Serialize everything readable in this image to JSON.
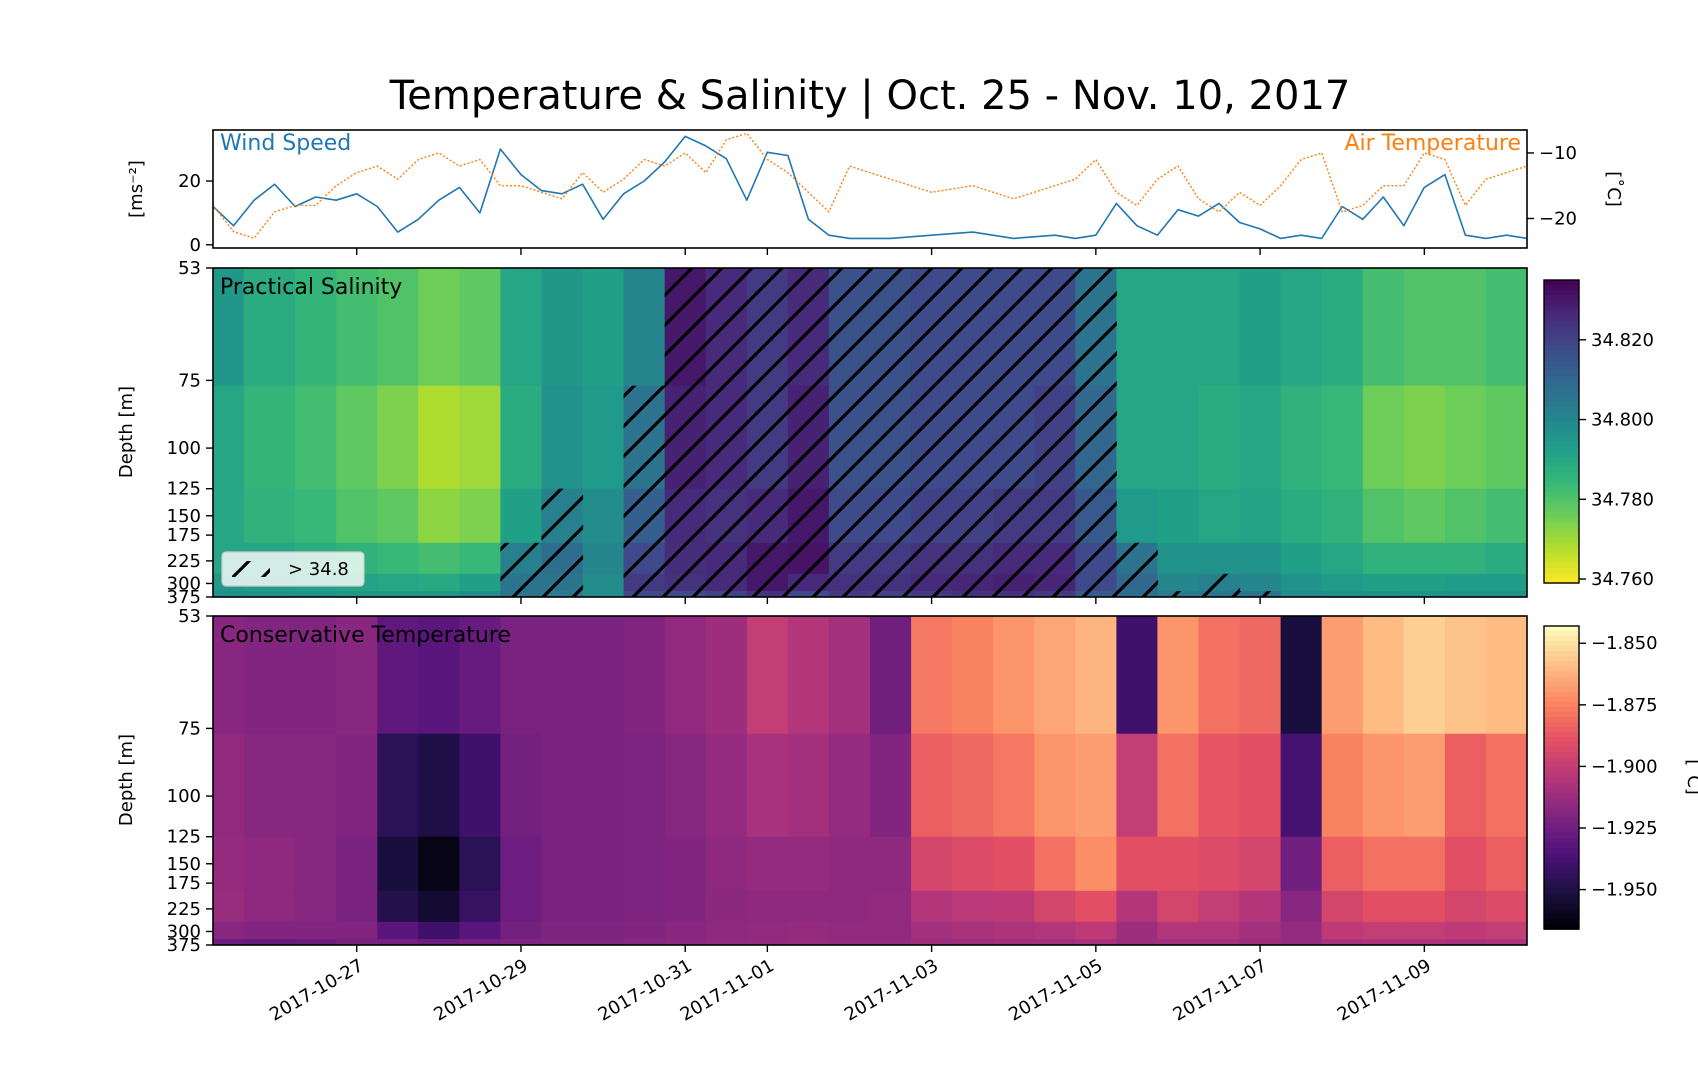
{
  "chart_data": [
    {
      "type": "line",
      "panel": "top",
      "title": "Temperature & Salinity | Oct. 25 - Nov. 10, 2017",
      "x_tick_labels": [
        "2017-10-27",
        "2017-10-29",
        "2017-10-31",
        "2017-11-01",
        "2017-11-03",
        "2017-11-05",
        "2017-11-07",
        "2017-11-09"
      ],
      "x_tick_dates": [
        "2017-10-27",
        "2017-10-29",
        "2017-10-31",
        "2017-11-01",
        "2017-11-03",
        "2017-11-05",
        "2017-11-07",
        "2017-11-09"
      ],
      "xlim": [
        "2017-10-25T06:00",
        "2017-11-10T06:00"
      ],
      "left_axis": {
        "ylabel": "[ms$^{-2}$]",
        "ylabel_display": "[ms⁻²]",
        "ylim": [
          -1,
          36
        ],
        "ticks": [
          0,
          20
        ],
        "color": "#1f77b4"
      },
      "right_axis": {
        "ylabel": "[°C]",
        "ylabel_display": "[˚C]",
        "ylim": [
          -24.5,
          -6.5
        ],
        "ticks": [
          -10,
          -20
        ],
        "color": "#ff7f0e"
      },
      "series": [
        {
          "name": "Wind Speed",
          "axis": "left",
          "color": "#1f77b4",
          "style": "solid",
          "x": [
            "2017-10-25T06:00",
            "2017-10-25T12:00",
            "2017-10-25T18:00",
            "2017-10-26T00:00",
            "2017-10-26T06:00",
            "2017-10-26T12:00",
            "2017-10-26T18:00",
            "2017-10-27T00:00",
            "2017-10-27T06:00",
            "2017-10-27T12:00",
            "2017-10-27T18:00",
            "2017-10-28T00:00",
            "2017-10-28T06:00",
            "2017-10-28T12:00",
            "2017-10-28T18:00",
            "2017-10-29T00:00",
            "2017-10-29T06:00",
            "2017-10-29T12:00",
            "2017-10-29T18:00",
            "2017-10-30T00:00",
            "2017-10-30T06:00",
            "2017-10-30T12:00",
            "2017-10-30T18:00",
            "2017-10-31T00:00",
            "2017-10-31T06:00",
            "2017-10-31T12:00",
            "2017-10-31T18:00",
            "2017-11-01T00:00",
            "2017-11-01T06:00",
            "2017-11-01T12:00",
            "2017-11-01T18:00",
            "2017-11-02T00:00",
            "2017-11-02T12:00",
            "2017-11-03T00:00",
            "2017-11-03T12:00",
            "2017-11-04T00:00",
            "2017-11-04T12:00",
            "2017-11-04T18:00",
            "2017-11-05T00:00",
            "2017-11-05T06:00",
            "2017-11-05T12:00",
            "2017-11-05T18:00",
            "2017-11-06T00:00",
            "2017-11-06T06:00",
            "2017-11-06T12:00",
            "2017-11-06T18:00",
            "2017-11-07T00:00",
            "2017-11-07T06:00",
            "2017-11-07T12:00",
            "2017-11-07T18:00",
            "2017-11-08T00:00",
            "2017-11-08T06:00",
            "2017-11-08T12:00",
            "2017-11-08T18:00",
            "2017-11-09T00:00",
            "2017-11-09T06:00",
            "2017-11-09T12:00",
            "2017-11-09T18:00",
            "2017-11-10T00:00",
            "2017-11-10T06:00"
          ],
          "y": [
            12,
            6,
            14,
            19,
            12,
            15,
            14,
            16,
            12,
            4,
            8,
            14,
            18,
            10,
            30,
            22,
            17,
            16,
            19,
            8,
            16,
            20,
            26,
            34,
            31,
            27,
            14,
            29,
            28,
            8,
            3,
            2,
            2,
            3,
            4,
            2,
            3,
            2,
            3,
            13,
            6,
            3,
            11,
            9,
            13,
            7,
            5,
            2,
            3,
            2,
            12,
            8,
            15,
            6,
            18,
            22,
            3,
            2,
            3,
            2
          ]
        },
        {
          "name": "Air Temperature",
          "axis": "right",
          "color": "#ff7f0e",
          "style": "dotted",
          "x": [
            "2017-10-25T06:00",
            "2017-10-25T12:00",
            "2017-10-25T18:00",
            "2017-10-26T00:00",
            "2017-10-26T06:00",
            "2017-10-26T12:00",
            "2017-10-26T18:00",
            "2017-10-27T00:00",
            "2017-10-27T06:00",
            "2017-10-27T12:00",
            "2017-10-27T18:00",
            "2017-10-28T00:00",
            "2017-10-28T06:00",
            "2017-10-28T12:00",
            "2017-10-28T18:00",
            "2017-10-29T00:00",
            "2017-10-29T06:00",
            "2017-10-29T12:00",
            "2017-10-29T18:00",
            "2017-10-30T00:00",
            "2017-10-30T06:00",
            "2017-10-30T12:00",
            "2017-10-30T18:00",
            "2017-10-31T00:00",
            "2017-10-31T06:00",
            "2017-10-31T12:00",
            "2017-10-31T18:00",
            "2017-11-01T00:00",
            "2017-11-01T06:00",
            "2017-11-01T12:00",
            "2017-11-01T18:00",
            "2017-11-02T00:00",
            "2017-11-02T12:00",
            "2017-11-03T00:00",
            "2017-11-03T12:00",
            "2017-11-04T00:00",
            "2017-11-04T12:00",
            "2017-11-04T18:00",
            "2017-11-05T00:00",
            "2017-11-05T06:00",
            "2017-11-05T12:00",
            "2017-11-05T18:00",
            "2017-11-06T00:00",
            "2017-11-06T06:00",
            "2017-11-06T12:00",
            "2017-11-06T18:00",
            "2017-11-07T00:00",
            "2017-11-07T06:00",
            "2017-11-07T12:00",
            "2017-11-07T18:00",
            "2017-11-08T00:00",
            "2017-11-08T06:00",
            "2017-11-08T12:00",
            "2017-11-08T18:00",
            "2017-11-09T00:00",
            "2017-11-09T06:00",
            "2017-11-09T12:00",
            "2017-11-09T18:00",
            "2017-11-10T00:00",
            "2017-11-10T06:00"
          ],
          "y": [
            -18,
            -22,
            -23,
            -19,
            -18,
            -18,
            -15,
            -13,
            -12,
            -14,
            -11,
            -10,
            -12,
            -11,
            -15,
            -15,
            -16,
            -17,
            -13,
            -16,
            -14,
            -11,
            -12,
            -10,
            -13,
            -8,
            -7,
            -11,
            -13,
            -16,
            -19,
            -12,
            -14,
            -16,
            -15,
            -17,
            -15,
            -14,
            -11,
            -16,
            -18,
            -14,
            -12,
            -17,
            -19,
            -16,
            -18,
            -15,
            -11,
            -10,
            -19,
            -18,
            -15,
            -15,
            -10,
            -11,
            -18,
            -14,
            -13,
            -12
          ]
        }
      ],
      "legend": "text labels: Wind Speed top-left, Air Temperature top-right"
    },
    {
      "type": "heatmap",
      "panel": "middle",
      "label": "Practical Salinity",
      "ylabel": "Depth [m]",
      "y_ticks": [
        53,
        75,
        100,
        125,
        150,
        175,
        225,
        300,
        375
      ],
      "y_scale": "reciprocal",
      "yrange_display": [
        53,
        375
      ],
      "colormap": "viridis_r",
      "colorbar_ticks": [
        "34.760",
        "34.780",
        "34.800",
        "34.820"
      ],
      "colorbar_values": [
        34.76,
        34.78,
        34.8,
        34.82
      ],
      "vmin": 34.759,
      "vmax": 34.835,
      "hatch_legend": "> 34.8",
      "hatch_threshold": 34.8,
      "x": [
        "2017-10-25T06:00",
        "2017-10-26T00:00",
        "2017-10-26T12:00",
        "2017-10-27T00:00",
        "2017-10-27T12:00",
        "2017-10-28T00:00",
        "2017-10-28T12:00",
        "2017-10-29T00:00",
        "2017-10-29T12:00",
        "2017-10-30T00:00",
        "2017-10-30T12:00",
        "2017-10-31T00:00",
        "2017-10-31T12:00",
        "2017-11-01T00:00",
        "2017-11-01T12:00",
        "2017-11-02T00:00",
        "2017-11-02T12:00",
        "2017-11-03T00:00",
        "2017-11-03T12:00",
        "2017-11-04T00:00",
        "2017-11-04T12:00",
        "2017-11-05T00:00",
        "2017-11-05T12:00",
        "2017-11-06T00:00",
        "2017-11-06T12:00",
        "2017-11-07T00:00",
        "2017-11-07T12:00",
        "2017-11-08T00:00",
        "2017-11-08T12:00",
        "2017-11-09T00:00",
        "2017-11-09T12:00",
        "2017-11-10T00:00"
      ],
      "depth_profile_shallow_to_deep": [
        [
          34.795,
          34.79,
          34.79,
          34.79,
          34.795,
          34.797
        ],
        [
          34.788,
          34.785,
          34.786,
          34.79,
          34.793,
          34.797
        ],
        [
          34.785,
          34.782,
          34.784,
          34.788,
          34.792,
          34.796
        ],
        [
          34.782,
          34.778,
          34.78,
          34.786,
          34.791,
          34.795
        ],
        [
          34.78,
          34.774,
          34.778,
          34.784,
          34.79,
          34.795
        ],
        [
          34.776,
          34.768,
          34.772,
          34.782,
          34.789,
          34.795
        ],
        [
          34.778,
          34.77,
          34.774,
          34.784,
          34.792,
          34.798
        ],
        [
          34.79,
          34.788,
          34.792,
          34.802,
          34.806,
          34.806
        ],
        [
          34.795,
          34.796,
          34.802,
          34.808,
          34.806,
          34.804
        ],
        [
          34.792,
          34.794,
          34.798,
          34.8,
          34.798,
          34.798
        ],
        [
          34.8,
          34.806,
          34.812,
          34.818,
          34.822,
          34.818
        ],
        [
          34.83,
          34.828,
          34.826,
          34.825,
          34.824,
          34.818
        ],
        [
          34.826,
          34.826,
          34.824,
          34.826,
          34.826,
          34.82
        ],
        [
          34.822,
          34.822,
          34.826,
          34.83,
          34.83,
          34.824
        ],
        [
          34.826,
          34.828,
          34.83,
          34.831,
          34.826,
          34.818
        ],
        [
          34.816,
          34.816,
          34.818,
          34.822,
          34.824,
          34.822
        ],
        [
          34.816,
          34.816,
          34.818,
          34.822,
          34.824,
          34.82
        ],
        [
          34.818,
          34.818,
          34.82,
          34.824,
          34.826,
          34.822
        ],
        [
          34.818,
          34.818,
          34.82,
          34.824,
          34.827,
          34.824
        ],
        [
          34.818,
          34.818,
          34.822,
          34.826,
          34.828,
          34.824
        ],
        [
          34.818,
          34.82,
          34.822,
          34.826,
          34.827,
          34.822
        ],
        [
          34.806,
          34.81,
          34.814,
          34.818,
          34.818,
          34.814
        ],
        [
          34.79,
          34.79,
          34.794,
          34.806,
          34.81,
          34.808
        ],
        [
          34.79,
          34.79,
          34.792,
          34.796,
          34.8,
          34.804
        ],
        [
          34.79,
          34.788,
          34.79,
          34.796,
          34.802,
          34.806
        ],
        [
          34.792,
          34.79,
          34.791,
          34.796,
          34.8,
          34.806
        ],
        [
          34.79,
          34.786,
          34.788,
          34.792,
          34.796,
          34.798
        ],
        [
          34.788,
          34.784,
          34.786,
          34.79,
          34.794,
          34.797
        ],
        [
          34.782,
          34.776,
          34.78,
          34.786,
          34.792,
          34.797
        ],
        [
          34.78,
          34.774,
          34.778,
          34.786,
          34.792,
          34.796
        ],
        [
          34.78,
          34.776,
          34.78,
          34.786,
          34.793,
          34.797
        ],
        [
          34.782,
          34.778,
          34.782,
          34.788,
          34.793,
          34.797
        ]
      ],
      "depth_levels": [
        53,
        100,
        150,
        225,
        300,
        375
      ]
    },
    {
      "type": "heatmap",
      "panel": "bottom",
      "label": "Conservative Temperature",
      "ylabel": "Depth [m]",
      "colorbar_label": "[°C]",
      "colorbar_label_display": "[˚C]",
      "y_ticks": [
        53,
        75,
        100,
        125,
        150,
        175,
        225,
        300,
        375
      ],
      "y_scale": "reciprocal",
      "yrange_display": [
        53,
        375
      ],
      "colormap": "magma",
      "colorbar_ticks": [
        "-1.850",
        "-1.875",
        "-1.900",
        "-1.925",
        "-1.950"
      ],
      "colorbar_values": [
        -1.85,
        -1.875,
        -1.9,
        -1.925,
        -1.95
      ],
      "vmin": -1.966,
      "vmax": -1.843,
      "x": [
        "2017-10-25T06:00",
        "2017-10-26T00:00",
        "2017-10-26T12:00",
        "2017-10-27T00:00",
        "2017-10-27T12:00",
        "2017-10-28T00:00",
        "2017-10-28T12:00",
        "2017-10-29T00:00",
        "2017-10-29T12:00",
        "2017-10-30T00:00",
        "2017-10-30T12:00",
        "2017-10-31T00:00",
        "2017-10-31T12:00",
        "2017-11-01T00:00",
        "2017-11-01T12:00",
        "2017-11-02T00:00",
        "2017-11-02T12:00",
        "2017-11-03T00:00",
        "2017-11-03T12:00",
        "2017-11-04T00:00",
        "2017-11-04T12:00",
        "2017-11-05T00:00",
        "2017-11-05T12:00",
        "2017-11-06T00:00",
        "2017-11-06T12:00",
        "2017-11-07T00:00",
        "2017-11-07T12:00",
        "2017-11-08T00:00",
        "2017-11-08T12:00",
        "2017-11-09T00:00",
        "2017-11-09T12:00",
        "2017-11-10T00:00"
      ],
      "depth_profile_shallow_to_deep": [
        [
          -1.918,
          -1.915,
          -1.914,
          -1.913,
          -1.918,
          -1.926
        ],
        [
          -1.92,
          -1.918,
          -1.916,
          -1.916,
          -1.92,
          -1.928
        ],
        [
          -1.92,
          -1.918,
          -1.918,
          -1.918,
          -1.92,
          -1.926
        ],
        [
          -1.918,
          -1.92,
          -1.922,
          -1.922,
          -1.92,
          -1.922
        ],
        [
          -1.93,
          -1.946,
          -1.952,
          -1.948,
          -1.932,
          -1.924
        ],
        [
          -1.932,
          -1.95,
          -1.962,
          -1.955,
          -1.94,
          -1.926
        ],
        [
          -1.928,
          -1.94,
          -1.946,
          -1.942,
          -1.932,
          -1.924
        ],
        [
          -1.922,
          -1.924,
          -1.926,
          -1.926,
          -1.924,
          -1.921
        ],
        [
          -1.922,
          -1.922,
          -1.922,
          -1.922,
          -1.921,
          -1.92
        ],
        [
          -1.922,
          -1.922,
          -1.922,
          -1.922,
          -1.921,
          -1.92
        ],
        [
          -1.92,
          -1.921,
          -1.921,
          -1.921,
          -1.92,
          -1.918
        ],
        [
          -1.915,
          -1.918,
          -1.92,
          -1.92,
          -1.918,
          -1.917
        ],
        [
          -1.912,
          -1.914,
          -1.916,
          -1.917,
          -1.916,
          -1.915
        ],
        [
          -1.9,
          -1.908,
          -1.914,
          -1.916,
          -1.915,
          -1.914
        ],
        [
          -1.905,
          -1.91,
          -1.914,
          -1.916,
          -1.914,
          -1.913
        ],
        [
          -1.91,
          -1.914,
          -1.916,
          -1.916,
          -1.915,
          -1.914
        ],
        [
          -1.925,
          -1.92,
          -1.916,
          -1.915,
          -1.915,
          -1.914
        ],
        [
          -1.878,
          -1.885,
          -1.895,
          -1.905,
          -1.91,
          -1.912
        ],
        [
          -1.875,
          -1.882,
          -1.892,
          -1.903,
          -1.908,
          -1.911
        ],
        [
          -1.87,
          -1.878,
          -1.89,
          -1.902,
          -1.907,
          -1.91
        ],
        [
          -1.866,
          -1.87,
          -1.88,
          -1.895,
          -1.905,
          -1.91
        ],
        [
          -1.862,
          -1.868,
          -1.872,
          -1.89,
          -1.902,
          -1.908
        ],
        [
          -1.94,
          -1.9,
          -1.89,
          -1.905,
          -1.912,
          -1.912
        ],
        [
          -1.87,
          -1.88,
          -1.89,
          -1.895,
          -1.905,
          -1.91
        ],
        [
          -1.88,
          -1.888,
          -1.892,
          -1.9,
          -1.905,
          -1.91
        ],
        [
          -1.882,
          -1.89,
          -1.895,
          -1.905,
          -1.91,
          -1.912
        ],
        [
          -1.952,
          -1.938,
          -1.925,
          -1.918,
          -1.914,
          -1.914
        ],
        [
          -1.868,
          -1.875,
          -1.885,
          -1.895,
          -1.902,
          -1.908
        ],
        [
          -1.86,
          -1.87,
          -1.88,
          -1.89,
          -1.9,
          -1.906
        ],
        [
          -1.855,
          -1.868,
          -1.88,
          -1.89,
          -1.9,
          -1.906
        ],
        [
          -1.858,
          -1.885,
          -1.89,
          -1.895,
          -1.902,
          -1.908
        ],
        [
          -1.86,
          -1.88,
          -1.885,
          -1.892,
          -1.9,
          -1.906
        ]
      ],
      "depth_levels": [
        53,
        100,
        150,
        225,
        300,
        375
      ]
    }
  ]
}
